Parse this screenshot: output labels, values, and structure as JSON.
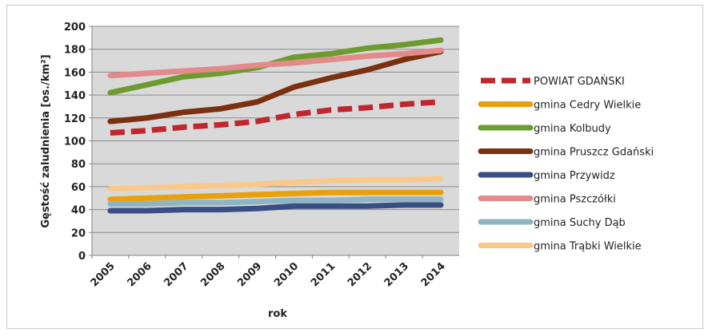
{
  "chart_data": {
    "type": "line",
    "title": "",
    "xlabel": "rok",
    "ylabel": "Gęstość zaludnienia [os./km²]",
    "ylim": [
      0,
      200
    ],
    "yticks": [
      "0",
      "20",
      "40",
      "60",
      "80",
      "100",
      "120",
      "140",
      "160",
      "180",
      "200"
    ],
    "categories": [
      "2005",
      "2006",
      "2007",
      "2008",
      "2009",
      "2010",
      "2011",
      "2012",
      "2013",
      "2014"
    ],
    "grid": "horizontal",
    "legend_position": "right",
    "series": [
      {
        "name": "POWIAT GDAŃSKI",
        "color": "#c0262d",
        "dashed": true,
        "values": [
          107,
          109,
          112,
          114,
          117,
          123,
          127,
          129,
          132,
          134
        ]
      },
      {
        "name": "gmina Cedry Wielkie",
        "color": "#e8a00c",
        "dashed": false,
        "values": [
          49,
          50,
          51,
          52,
          53,
          54,
          55,
          55,
          55,
          55
        ]
      },
      {
        "name": "gmina Kolbudy",
        "color": "#6e9b30",
        "dashed": false,
        "values": [
          142,
          149,
          156,
          159,
          164,
          173,
          176,
          181,
          184,
          188
        ]
      },
      {
        "name": "gmina Pruszcz Gdański",
        "color": "#7b3010",
        "dashed": false,
        "values": [
          117,
          120,
          125,
          128,
          134,
          147,
          155,
          162,
          171,
          178
        ]
      },
      {
        "name": "gmina Przywidz",
        "color": "#3a4e86",
        "dashed": false,
        "values": [
          39,
          39,
          40,
          40,
          41,
          43,
          43,
          43,
          44,
          44
        ]
      },
      {
        "name": "gmina Pszczółki",
        "color": "#e38a8a",
        "dashed": false,
        "values": [
          157,
          159,
          161,
          163,
          166,
          168,
          171,
          174,
          176,
          179
        ]
      },
      {
        "name": "gmina Suchy Dąb",
        "color": "#8fb5c4",
        "dashed": false,
        "values": [
          45,
          45,
          46,
          46,
          47,
          48,
          48,
          49,
          49,
          49
        ]
      },
      {
        "name": "gmina Trąbki Wielkie",
        "color": "#f8c98b",
        "dashed": false,
        "values": [
          58,
          59,
          60,
          61,
          62,
          64,
          65,
          66,
          66,
          67
        ]
      }
    ]
  }
}
